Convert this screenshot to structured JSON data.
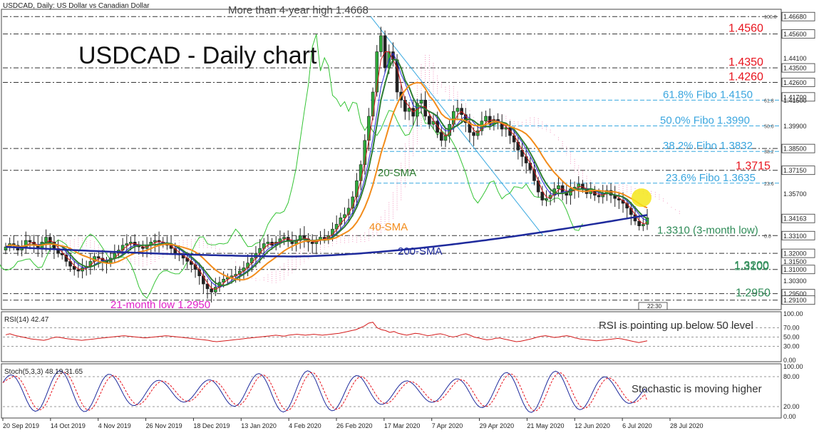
{
  "header": {
    "symbol_line": "USDCAD, Daily:  US Dollar vs Canadian Dollar",
    "title": "USDCAD - Daily chart"
  },
  "chart_data": [
    {
      "type": "candlestick",
      "name": "main",
      "x_labels": [
        "20 Sep 2019",
        "14 Oct 2019",
        "4 Nov 2019",
        "26 Nov 2019",
        "18 Dec 2019",
        "13 Jan 2020",
        "4 Feb 2020",
        "26 Feb 2020",
        "17 Mar 2020",
        "7 Apr 2020",
        "29 Apr 2020",
        "21 May 2020",
        "12 Jun 2020",
        "6 Jul 2020",
        "28 Jul 2020"
      ],
      "ylim": [
        1.286,
        1.47
      ],
      "y_ticks": [
        {
          "label": "1.46680",
          "value": 1.4668,
          "marker": true
        },
        {
          "label": "1.45600",
          "value": 1.456,
          "marker": true
        },
        {
          "label": "1.44100",
          "value": 1.441,
          "marker": false
        },
        {
          "label": "1.43500",
          "value": 1.435,
          "marker": true
        },
        {
          "label": "1.42600",
          "value": 1.426,
          "marker": true
        },
        {
          "label": "1.41700",
          "value": 1.417,
          "marker": true
        },
        {
          "label": "1.41500",
          "value": 1.415,
          "marker": false
        },
        {
          "label": "1.39900",
          "value": 1.399,
          "marker": false
        },
        {
          "label": "1.38500",
          "value": 1.385,
          "marker": true
        },
        {
          "label": "1.37150",
          "value": 1.3715,
          "marker": true
        },
        {
          "label": "1.35700",
          "value": 1.357,
          "marker": false
        },
        {
          "label": "1.34163",
          "value": 1.34163,
          "marker": true
        },
        {
          "label": "1.33100",
          "value": 1.331,
          "marker": true
        },
        {
          "label": "1.32000",
          "value": 1.32,
          "marker": true
        },
        {
          "label": "1.31500",
          "value": 1.315,
          "marker": false
        },
        {
          "label": "1.31000",
          "value": 1.31,
          "marker": true
        },
        {
          "label": "1.30300",
          "value": 1.303,
          "marker": false
        },
        {
          "label": "1.29500",
          "value": 1.295,
          "marker": true
        },
        {
          "label": "1.29100",
          "value": 1.291,
          "marker": true
        }
      ],
      "horizontal_levels": [
        {
          "value": 1.4668,
          "label": "More than 4-year high 1.4668",
          "color": "#333333",
          "style": "dashdot"
        },
        {
          "value": 1.456,
          "label": "1.4560",
          "color": "#e8141e",
          "style": "dashdot"
        },
        {
          "value": 1.435,
          "label": "1.4350",
          "color": "#e8141e",
          "style": "dashdot"
        },
        {
          "value": 1.426,
          "label": "1.4260",
          "color": "#e8141e",
          "style": "dashdot"
        },
        {
          "value": 1.385,
          "label": "",
          "color": "#333333",
          "style": "dashdot"
        },
        {
          "value": 1.3715,
          "label": "1.3715",
          "color": "#e8141e",
          "style": "dashdot"
        },
        {
          "value": 1.331,
          "label": "1.3310 (3-month low)",
          "color": "#2e8b57",
          "style": "dashdot"
        },
        {
          "value": 1.32,
          "label": "1.3200",
          "color": "#2e8b57",
          "style": "dashdot"
        },
        {
          "value": 1.31,
          "label": "1.3100",
          "color": "#2e8b57",
          "style": "dashdot"
        },
        {
          "value": 1.295,
          "label": "1.2950",
          "color": "#2e8b57",
          "style": "dashdot"
        },
        {
          "value": 1.291,
          "label": "",
          "color": "#333333",
          "style": "dashdot"
        }
      ],
      "fibo_levels": [
        {
          "value": 1.415,
          "label": "61.8% Fibo 1.4150",
          "pct": "61.8"
        },
        {
          "value": 1.399,
          "label": "50.0% Fibo 1.3990",
          "pct": "50.0"
        },
        {
          "value": 1.3832,
          "label": "38.2% Fibo 1.3832",
          "pct": "38.2"
        },
        {
          "value": 1.3635,
          "label": "23.6% Fibo 1.3635",
          "pct": "23.6"
        },
        {
          "value": 1.4668,
          "label": "",
          "pct": "100.0"
        },
        {
          "value": 1.331,
          "label": "",
          "pct": "0.0"
        }
      ],
      "annotations": [
        {
          "text": "20-SMA",
          "color": "#2e7d32"
        },
        {
          "text": "40-SMA",
          "color": "#f28c1b"
        },
        {
          "text": "200-SMA",
          "color": "#1e2a9c"
        },
        {
          "text": "21-month low 1.2950",
          "color": "#e020c8"
        }
      ],
      "time_marker": "22:30",
      "series_closes": [
        1.324,
        1.326,
        1.325,
        1.322,
        1.324,
        1.328,
        1.327,
        1.325,
        1.323,
        1.327,
        1.33,
        1.327,
        1.323,
        1.32,
        1.319,
        1.315,
        1.312,
        1.31,
        1.309,
        1.311,
        1.312,
        1.315,
        1.318,
        1.317,
        1.315,
        1.314,
        1.317,
        1.32,
        1.322,
        1.325,
        1.326,
        1.327,
        1.325,
        1.324,
        1.323,
        1.325,
        1.327,
        1.328,
        1.327,
        1.326,
        1.325,
        1.323,
        1.32,
        1.319,
        1.317,
        1.315,
        1.313,
        1.31,
        1.306,
        1.301,
        1.298,
        1.296,
        1.299,
        1.302,
        1.304,
        1.305,
        1.306,
        1.307,
        1.309,
        1.311,
        1.314,
        1.317,
        1.32,
        1.323,
        1.326,
        1.327,
        1.325,
        1.327,
        1.329,
        1.33,
        1.328,
        1.326,
        1.328,
        1.331,
        1.329,
        1.327,
        1.326,
        1.328,
        1.33,
        1.329,
        1.331,
        1.335,
        1.338,
        1.342,
        1.344,
        1.348,
        1.355,
        1.365,
        1.375,
        1.39,
        1.405,
        1.42,
        1.445,
        1.455,
        1.435,
        1.445,
        1.44,
        1.42,
        1.415,
        1.408,
        1.41,
        1.405,
        1.413,
        1.415,
        1.405,
        1.4,
        1.402,
        1.395,
        1.39,
        1.393,
        1.4,
        1.408,
        1.41,
        1.406,
        1.401,
        1.395,
        1.393,
        1.396,
        1.402,
        1.405,
        1.4,
        1.403,
        1.401,
        1.397,
        1.398,
        1.393,
        1.389,
        1.384,
        1.38,
        1.376,
        1.372,
        1.365,
        1.358,
        1.353,
        1.354,
        1.356,
        1.36,
        1.362,
        1.358,
        1.356,
        1.36,
        1.361,
        1.363,
        1.36,
        1.357,
        1.359,
        1.356,
        1.355,
        1.357,
        1.359,
        1.356,
        1.354,
        1.353,
        1.351,
        1.348,
        1.344,
        1.34,
        1.337,
        1.338,
        1.342
      ],
      "moving_averages": [
        {
          "name": "20-SMA",
          "color": "#2e7d32",
          "period": 20
        },
        {
          "name": "40-SMA",
          "color": "#f28c1b",
          "period": 40
        },
        {
          "name": "200-SMA",
          "color": "#1e2a9c",
          "period": 200
        }
      ]
    },
    {
      "type": "line",
      "name": "RSI(14)",
      "header": "RSI(14) 42.47",
      "annotation": "RSI is pointing up below 50 level",
      "ylim": [
        0,
        100
      ],
      "y_ticks": [
        "100.00",
        "70.00",
        "50.00",
        "30.00",
        "0.00"
      ],
      "reference_levels": [
        70,
        50,
        30
      ],
      "values": [
        55,
        57,
        54,
        52,
        50,
        48,
        46,
        45,
        44,
        43,
        45,
        48,
        50,
        49,
        47,
        46,
        45,
        44,
        43,
        44,
        45,
        46,
        47,
        48,
        49,
        50,
        51,
        52,
        53,
        52,
        51,
        50,
        49,
        48,
        49,
        50,
        51,
        52,
        53,
        52,
        51,
        50,
        49,
        48,
        47,
        46,
        45,
        44,
        43,
        41,
        40,
        41,
        42,
        43,
        44,
        45,
        46,
        47,
        48,
        49,
        50,
        51,
        52,
        53,
        54,
        53,
        52,
        54,
        55,
        56,
        55,
        54,
        55,
        56,
        55,
        54,
        55,
        56,
        57,
        58,
        60,
        62,
        64,
        66,
        70,
        74,
        80,
        82,
        70,
        66,
        64,
        60,
        62,
        58,
        56,
        54,
        56,
        58,
        57,
        55,
        53,
        54,
        56,
        57,
        55,
        52,
        50,
        52,
        55,
        57,
        54,
        50,
        48,
        46,
        44,
        45,
        47,
        48,
        46,
        44,
        42,
        40,
        41,
        43,
        45,
        47,
        50,
        52,
        53,
        51,
        49,
        50,
        52,
        53,
        51,
        48,
        46,
        45,
        44,
        43,
        42,
        43,
        44,
        45,
        46,
        47,
        46,
        44,
        42,
        40,
        38,
        40,
        42
      ]
    },
    {
      "type": "line",
      "name": "Stoch(5,3,3)",
      "header": "Stoch(5,3,3) 48.19 31.65",
      "annotation": "Stochastic is moving higher",
      "ylim": [
        0,
        100
      ],
      "y_ticks": [
        "100.00",
        "80.00",
        "20.00",
        "0.00"
      ],
      "reference_levels": [
        80,
        20
      ],
      "series": [
        {
          "name": "%K",
          "color": "#1e2a9c",
          "cycles": 26
        },
        {
          "name": "%D",
          "color": "#e8141e",
          "cycles": 26
        }
      ],
      "last_values": [
        48.19,
        31.65
      ]
    }
  ]
}
